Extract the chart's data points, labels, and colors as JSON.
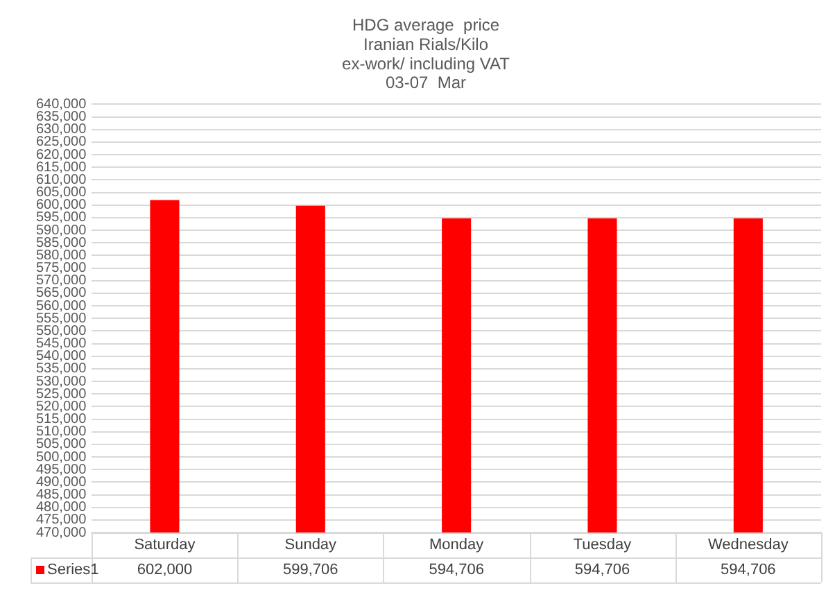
{
  "chart_data": {
    "type": "bar",
    "title": "HDG average  price\nIranian Rials/Kilo\nex-work/ including VAT\n03-07  Mar",
    "categories": [
      "Saturday",
      "Sunday",
      "Monday",
      "Tuesday",
      "Wednesday"
    ],
    "series": [
      {
        "name": "Series1",
        "color": "#ff0000",
        "values": [
          602000,
          599706,
          594706,
          594706,
          594706
        ],
        "value_labels": [
          "602,000",
          "599,706",
          "594,706",
          "594,706",
          "594,706"
        ]
      }
    ],
    "ylim": [
      470000,
      640000
    ],
    "yticks": [
      {
        "value": 470000,
        "label": "470,000"
      },
      {
        "value": 475000,
        "label": "475,000"
      },
      {
        "value": 480000,
        "label": "480,000"
      },
      {
        "value": 485000,
        "label": "485,000"
      },
      {
        "value": 490000,
        "label": "490,000"
      },
      {
        "value": 495000,
        "label": "495,000"
      },
      {
        "value": 500000,
        "label": "500,000"
      },
      {
        "value": 505000,
        "label": "505,000"
      },
      {
        "value": 510000,
        "label": "510,000"
      },
      {
        "value": 515000,
        "label": "515,000"
      },
      {
        "value": 520000,
        "label": "520,000"
      },
      {
        "value": 525000,
        "label": "525,000"
      },
      {
        "value": 530000,
        "label": "530,000"
      },
      {
        "value": 535000,
        "label": "535,000"
      },
      {
        "value": 540000,
        "label": "540,000"
      },
      {
        "value": 545000,
        "label": "545,000"
      },
      {
        "value": 550000,
        "label": "550,000"
      },
      {
        "value": 555000,
        "label": "555,000"
      },
      {
        "value": 560000,
        "label": "560,000"
      },
      {
        "value": 565000,
        "label": "565,000"
      },
      {
        "value": 570000,
        "label": "570,000"
      },
      {
        "value": 575000,
        "label": "575,000"
      },
      {
        "value": 580000,
        "label": "580,000"
      },
      {
        "value": 585000,
        "label": "585,000"
      },
      {
        "value": 590000,
        "label": "590,000"
      },
      {
        "value": 595000,
        "label": "595,000"
      },
      {
        "value": 600000,
        "label": "600,000"
      },
      {
        "value": 605000,
        "label": "605,000"
      },
      {
        "value": 610000,
        "label": "610,000"
      },
      {
        "value": 615000,
        "label": "615,000"
      },
      {
        "value": 620000,
        "label": "620,000"
      },
      {
        "value": 625000,
        "label": "625,000"
      },
      {
        "value": 630000,
        "label": "630,000"
      },
      {
        "value": 635000,
        "label": "635,000"
      },
      {
        "value": 640000,
        "label": "640,000"
      }
    ],
    "grid": "y",
    "legend": "bottom"
  }
}
